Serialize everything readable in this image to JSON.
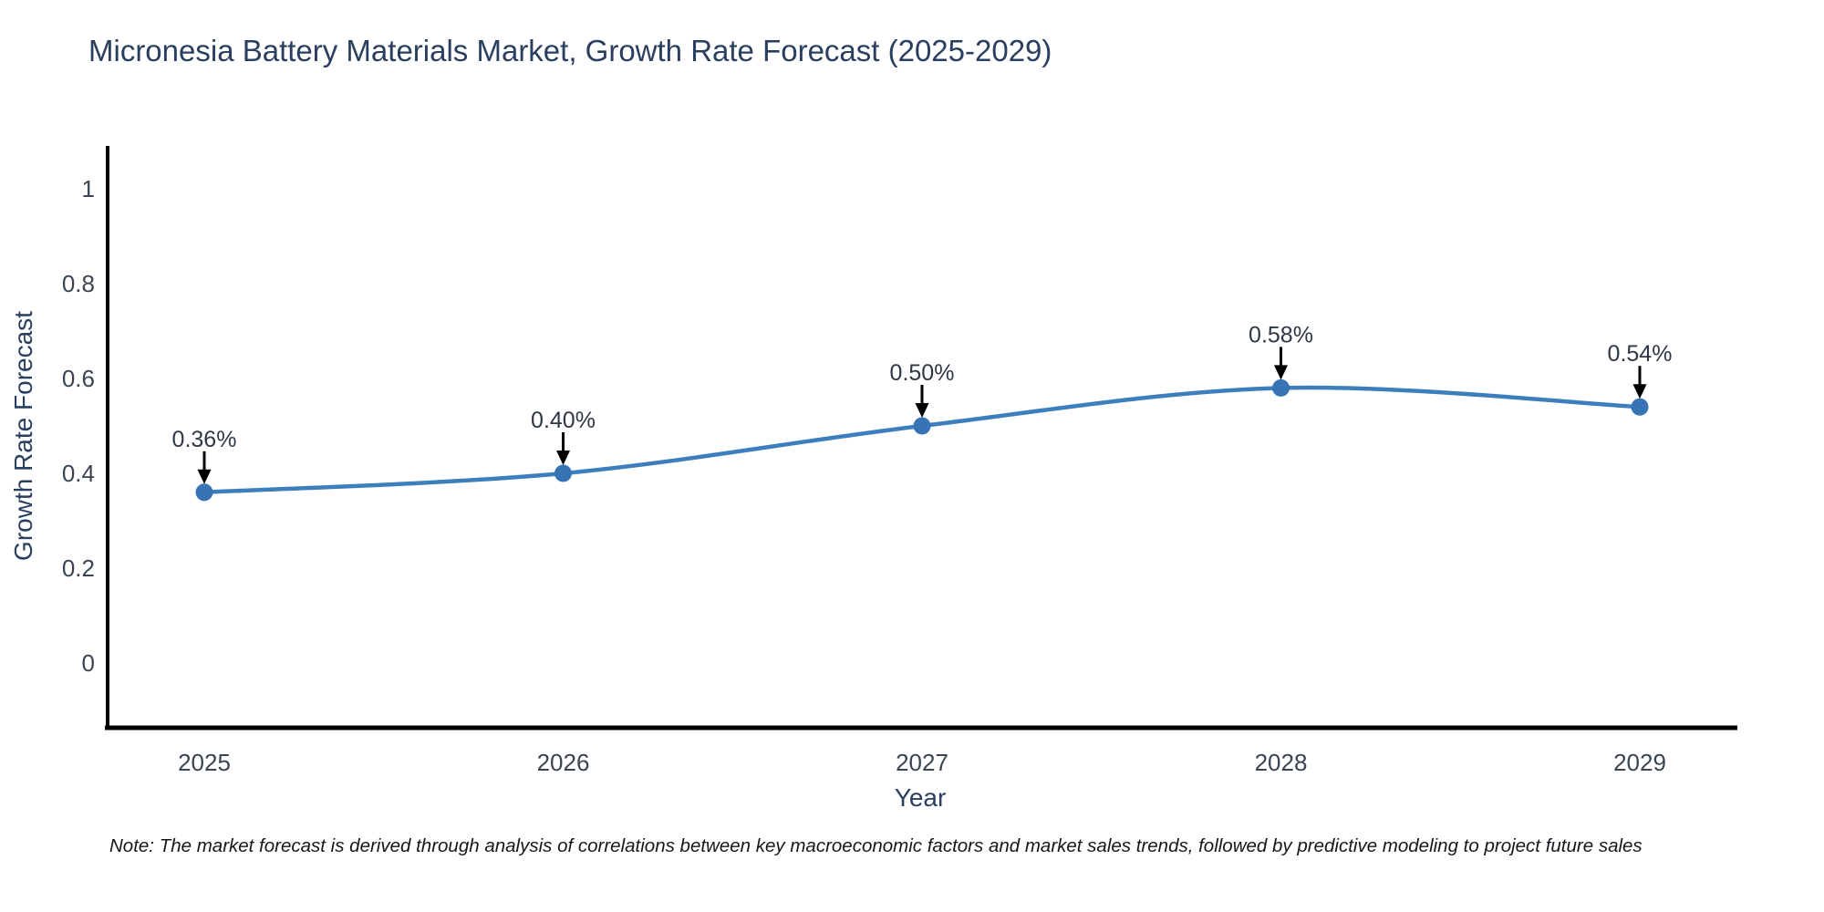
{
  "title": "Micronesia Battery Materials Market, Growth Rate Forecast (2025-2029)",
  "axes": {
    "x_title": "Year",
    "y_title": "Growth Rate Forecast",
    "x_tick_labels": [
      "2025",
      "2026",
      "2027",
      "2028",
      "2029"
    ],
    "y_tick_labels": [
      "0",
      "0.2",
      "0.4",
      "0.6",
      "0.8",
      "1"
    ]
  },
  "note": "Note: The market forecast is derived through analysis of correlations between key macroeconomic factors and market sales trends, followed by predictive modeling to project future sales",
  "colors": {
    "line": "#3d7ebd",
    "marker": "#3674b5",
    "axis_line": "#000000",
    "title_text": "#2a3f5f",
    "tick_text": "#3b4453",
    "annotation_text": "#2f3747",
    "arrow": "#000000",
    "background": "#ffffff"
  },
  "chart_data": {
    "type": "line",
    "title": "Micronesia Battery Materials Market, Growth Rate Forecast (2025-2029)",
    "xlabel": "Year",
    "ylabel": "Growth Rate Forecast",
    "x": [
      2025,
      2026,
      2027,
      2028,
      2029
    ],
    "series": [
      {
        "name": "Growth Rate Forecast",
        "values": [
          0.36,
          0.4,
          0.5,
          0.58,
          0.54
        ],
        "point_labels": [
          "0.36%",
          "0.40%",
          "0.50%",
          "0.58%",
          "0.54%"
        ]
      }
    ],
    "yticks": [
      0,
      0.2,
      0.4,
      0.6,
      0.8,
      1
    ],
    "ylim": [
      -0.14,
      1.09
    ],
    "grid": false,
    "legend": "none",
    "line_shape": "spline",
    "annotations": "value labels with downward arrows above each point"
  }
}
